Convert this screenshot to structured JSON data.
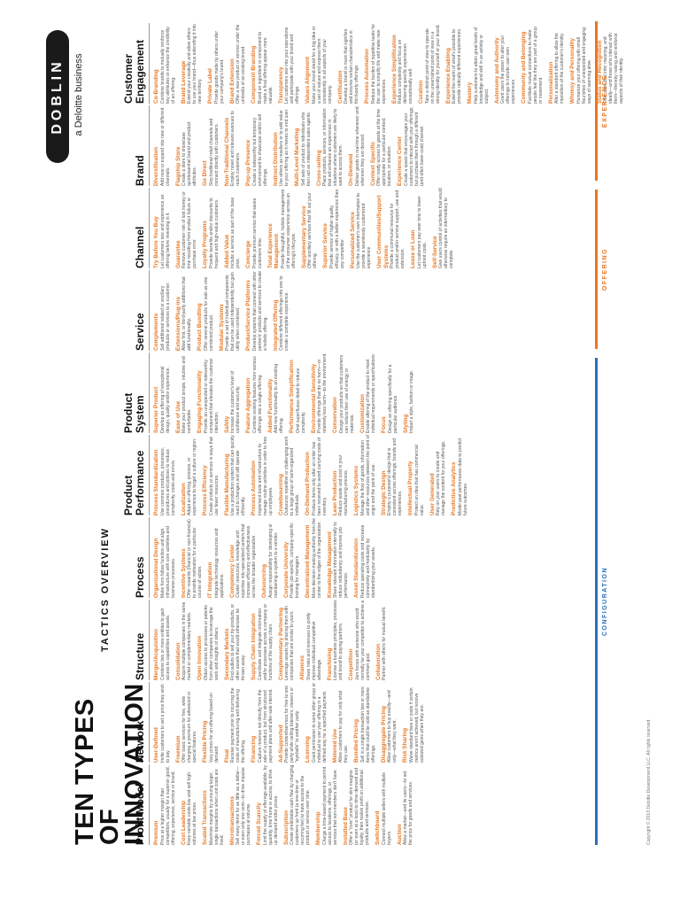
{
  "header": {
    "title_line1": "TEN TYPES OF",
    "title_line2": "INNOVATION",
    "subtitle": "TACTICS OVERVIEW",
    "brand": "DOBLIN",
    "brand_sub": "a Deloitte business"
  },
  "categories": [
    {
      "label": "CONFIGURATION",
      "color": "#2e6fb5"
    },
    {
      "label": "OFFERING",
      "color": "#e87722"
    },
    {
      "label": "EXPERIENCE",
      "color": "#e87722"
    }
  ],
  "copyright": "Copyright © 2013 Deloitte Development LLC. All rights reserved.",
  "columns": [
    {
      "name": "Profit Model",
      "tactics": [
        {
          "name": "Premium",
          "desc": "Price at a higher margin than competitors, usually for a superior good, offering, experience, service or brand."
        },
        {
          "name": "Cost Leadership",
          "desc": "Keep variable costs low and sell high volumes at low prices."
        },
        {
          "name": "Scaled Transactions",
          "desc": "Maximize margins by pursuing larger, single transactions when unit costs are fixed."
        },
        {
          "name": "Microtransactions",
          "desc": "Sell many items for as little as a dollar—or even only one cent—to drive impulse purchases at volume."
        },
        {
          "name": "Forced Scarcity",
          "desc": "Limit the supply of offerings available, by quantity, time frame or access, to drive up demand and/or prices."
        },
        {
          "name": "Subscription",
          "desc": "Create predictable cash flow by charging customers up front (a one-time or recurring fee) to have access to the product or service over time."
        },
        {
          "name": "Membership",
          "desc": "Charge a time-based payment to permit access to locations, offerings, or services that non-members don't have."
        },
        {
          "name": "Installed Base",
          "desc": "Offer a \"core\" product for slim margins (or even at a loss) to drive demand and loyalty, then realize profit on additional products and services."
        },
        {
          "name": "Switchboard",
          "desc": "Connect multiple sellers with multiple buyers."
        },
        {
          "name": "Auction",
          "desc": "Allow a market—and its users—to set the price for goods and services."
        }
      ]
    },
    {
      "name": "Network",
      "tactics": [
        {
          "name": "User-Defined",
          "desc": "Invite customers to set a price they wish to pay."
        },
        {
          "name": "Freemium",
          "desc": "Offer basic services for free, while charging a premium for advanced or special features."
        },
        {
          "name": "Flexible Pricing",
          "desc": "Vary prices for an offering based on demand."
        },
        {
          "name": "Float",
          "desc": "Receive payment prior to incurring the costs of manufacturing and delivering the offering."
        },
        {
          "name": "Financing",
          "desc": "Capture revenue not directly from the sale of a product, but from structured payment plans and after-sale interest."
        },
        {
          "name": "Ad-Supported",
          "desc": "Provide content/services for free to one party while selling listeners, viewers or \"eyeballs\" to another party."
        },
        {
          "name": "Licensing",
          "desc": "Grant permission to some other group or individual to use your offering in a defined way for a specified payment."
        },
        {
          "name": "Metered Use",
          "desc": "Allow customers to pay for only what they use."
        },
        {
          "name": "Bundled Pricing",
          "desc": "Sell in a single transaction two or more items that could be sold as standalone offerings."
        },
        {
          "name": "Disaggregate Pricing",
          "desc": "Allow customers to buy exactly—and only—what they want."
        },
        {
          "name": "Risk Sharing",
          "desc": "Waive standard fees or costs if certain metrics aren't achieved, but receive outsized gains when they are."
        }
      ]
    },
    {
      "name": "Structure",
      "tactics": [
        {
          "name": "Merger/Acquisition",
          "desc": "Combine two or more entities to gain access to capabilities and assets."
        },
        {
          "name": "Consolidation",
          "desc": "Acquire multiple companies in the same market or complementary markets."
        },
        {
          "name": "Open Innovation",
          "desc": "Obtain access to processes or patents from other companies to leverage the work and insights of others."
        },
        {
          "name": "Secondary Markets",
          "desc": "Find outlets to sell your by-products, or other assets that would otherwise be thrown away."
        },
        {
          "name": "Supply Chain Integration",
          "desc": "Coordinate and integrate information and/or processes across a company or functions of the supply chain."
        },
        {
          "name": "Complementary Partnering",
          "desc": "Leverage assets by sharing them with companies that are similar to yours."
        },
        {
          "name": "Alliances",
          "desc": "Share risks and revenues to jointly improve individual competitive advantage."
        },
        {
          "name": "Franchising",
          "desc": "License a business principles, processes and brand to paying partners."
        },
        {
          "name": "Coopetition",
          "desc": "Join forces with someone who would normally be your competitor to achieve a common goal."
        },
        {
          "name": "Collaboration",
          "desc": "Partner with others for mutual benefit."
        }
      ]
    },
    {
      "name": "Process",
      "tactics": [
        {
          "name": "Organizational Design",
          "desc": "Make form follow function and align infrastructure with core activities and business processes."
        },
        {
          "name": "Incentive Systems",
          "desc": "Offer rewards (financial or non-financial) to provide motivation for a particular course of action."
        },
        {
          "name": "IT Integration",
          "desc": "Integrate technology resources and applications."
        },
        {
          "name": "Competency Center",
          "desc": "Cluster resources, knowledge and expertise into specialized centers that increase efficiency and effectiveness across the broader organization."
        },
        {
          "name": "Outsourcing",
          "desc": "Assign responsibility for developing or maintaining a system to a vendor."
        },
        {
          "name": "Corporate University",
          "desc": "Provide job-specific, company-specific training for managers."
        },
        {
          "name": "Decentralized Management",
          "desc": "Move decision-making authority from the center to the edges of the organization."
        },
        {
          "name": "Knowledge Management",
          "desc": "Share relevant information internally to reduce redundancy and improve job performance."
        },
        {
          "name": "Asset Standardization",
          "desc": "Reduce operating costs and increase connectivity and modularity by standardizing your assets."
        }
      ]
    },
    {
      "name": "Product Performance",
      "tactics": [
        {
          "name": "Process Standardization",
          "desc": "Use common products, processes, procedures and policies to reduce complexity, costs and errors."
        },
        {
          "name": "Localization",
          "desc": "Adapt an offering, process, or experience to target a culture or region."
        },
        {
          "name": "Process Efficiency",
          "desc": "Create products or services in ways that use fewer resources."
        },
        {
          "name": "Flexible Manufacturing",
          "desc": "Use a production system that can quickly react to changes and still operate efficiently."
        },
        {
          "name": "Process Automation",
          "desc": "Implement tools and infrastructure to manage routine activities in order to free up employees."
        },
        {
          "name": "Crowdsourcing",
          "desc": "Outsource repetitive or challenging work to a large group of semi-organized individuals."
        },
        {
          "name": "On-Demand Production",
          "desc": "Produce items only after an order has been received to avoid carrying costs of inventory."
        },
        {
          "name": "Lean Production",
          "desc": "Reduce waste and cost in your manufacturing process."
        },
        {
          "name": "Logistics Systems",
          "desc": "Manage the flow of goods, information and other resources between the point of origin and the point of use."
        },
        {
          "name": "Strategic Design",
          "desc": "Employ a purposeful design that is consistent across offerings, brands and experiences."
        },
        {
          "name": "Intellectual Property",
          "desc": "Protect an idea that has commercial value."
        },
        {
          "name": "User Generated",
          "desc": "Rely on your users to create and manage the content for your offerings."
        },
        {
          "name": "Predictive Analytics",
          "desc": "Model past performance data to predict future outcomes."
        }
      ]
    },
    {
      "name": "Product System",
      "tactics": [
        {
          "name": "Superior Product",
          "desc": "Develop an offering of exceptional design, quality and/or experience."
        },
        {
          "name": "Ease of Use",
          "desc": "Make your product simple, intuitive and comfortable."
        },
        {
          "name": "Engaging Functionality",
          "desc": "Provide an unexpected or noteworthy component that elevates the customer interaction."
        },
        {
          "name": "Safety",
          "desc": "Increase the customer's level of confidence and security."
        },
        {
          "name": "Feature Aggregation",
          "desc": "Combine existing features from various offerings into a single offering."
        },
        {
          "name": "Added Functionality",
          "desc": "Add new functionality to an existing offering."
        },
        {
          "name": "Performance Simplification",
          "desc": "Omit superfluous detail to reduce complexity."
        },
        {
          "name": "Environmental Sensitivity",
          "desc": "Provide offerings that do no harm—or relatively less harm—to the environment."
        },
        {
          "name": "Conservation",
          "desc": "Design your products so that customers can reduce their use of energy or materials."
        },
        {
          "name": "Customization",
          "desc": "Enable altering of the product to meet individual requirements or specifications."
        },
        {
          "name": "Focus",
          "desc": "Design an offering specifically for a particular audience."
        },
        {
          "name": "Styling",
          "desc": "Impart a style, fashion or image."
        }
      ]
    },
    {
      "name": "Service",
      "tactics": [
        {
          "name": "Complements",
          "desc": "Sell additional related or ancillary products or services to a customer."
        },
        {
          "name": "Extensions/Plug-ins",
          "desc": "Allow first, or third-party additions that add functionality."
        },
        {
          "name": "Product Bundling",
          "desc": "Offer several products for sale as one combined product."
        },
        {
          "name": "Modular Systems",
          "desc": "Provide a set of individual components that can be used independently but gain utility when combined."
        },
        {
          "name": "Product/Service Platforms",
          "desc": "Develop systems that connect with other partners' products and services to create a holistic offering."
        },
        {
          "name": "Integrated Offering",
          "desc": "Combine different offerings into one to create a complete experience."
        }
      ]
    },
    {
      "name": "Channel",
      "tactics": [
        {
          "name": "Try Before You Buy",
          "desc": "Let customers see and experience an offering before investing in it."
        },
        {
          "name": "Guarantee",
          "desc": "Remove customer risk of lost money or time resulting from product failure or purchase error."
        },
        {
          "name": "Loyalty Programs",
          "desc": "Provide benefits and/or discounts to frequent and high-value customers."
        },
        {
          "name": "Added Value",
          "desc": "Include a service as part of the base price."
        },
        {
          "name": "Concierge",
          "desc": "Provide premium service that saves customers time."
        },
        {
          "name": "Total Experience Management",
          "desc": "Provide thoughtful, holistic management of the consumer experience across an offering's lifecycle."
        },
        {
          "name": "Supplementary Service",
          "desc": "Offer ancillary services that fill out your offering."
        },
        {
          "name": "Superior Service",
          "desc": "Provide service of higher quality, efficacy, or with a better experience than any competitor."
        },
        {
          "name": "Personalized Service",
          "desc": "Use the customer's own information to provide a seamlessly customized experience."
        },
        {
          "name": "User Communities/Support Systems",
          "desc": "Provide a communal resource for product and/or service support, use and extension."
        },
        {
          "name": "Lease or Loan",
          "desc": "Let customers pay over time to lower upfront costs."
        },
        {
          "name": "Self-Service",
          "desc": "Give users control of activities that would otherwise require an intermediary to complete."
        }
      ]
    },
    {
      "name": "Brand",
      "tactics": [
        {
          "name": "Diversification",
          "desc": "Add new or expand into new or different channels."
        },
        {
          "name": "Flagship Store",
          "desc": "Create a store to showcase quintessential brand and product attributes."
        },
        {
          "name": "Go Direct",
          "desc": "Skip traditional retail channels and connect directly with customers."
        },
        {
          "name": "Non-Traditional Channels",
          "desc": "Employ novel and relevant avenues to reach customers."
        },
        {
          "name": "Pop-up Presence",
          "desc": "Create a noteworthy but temporary environment to showcase and/or sell offerings."
        },
        {
          "name": "Indirect Distribution",
          "desc": "Use others as resellers or to add value to your offering as it moves to end user."
        },
        {
          "name": "Multi-Level Marketing",
          "desc": "Sell sets of product to individuals who then act as independent sales agents."
        },
        {
          "name": "Cross-selling",
          "desc": "Place products, services, or information that will enhance an experience in situations where customers are likely to want to access them."
        },
        {
          "name": "On-Demand",
          "desc": "Deliver goods in real-time whenever and wherever they are desired."
        },
        {
          "name": "Context Specific",
          "desc": "Offer ready access to goods at the time appropriate for a particular context, location, or situation."
        },
        {
          "name": "Experience Center",
          "desc": "Create a space that encourages your customers to interact with your offerings, but purchase them through a different (and often lower-cost) channel."
        }
      ]
    },
    {
      "name": "Customer Engagement",
      "tactics": [
        {
          "name": "Co-Branding",
          "desc": "Combine brands to mutually reinforce key attributes or enhance the credibility of an offering."
        },
        {
          "name": "Brand Leverage",
          "desc": "Extend your creativity and allow others to use your brand—thus extending it into new territory."
        },
        {
          "name": "Private Label",
          "desc": "Provide goods made by others under your company's brand."
        },
        {
          "name": "Brand Extension",
          "desc": "Offer a new product or service under the umbrella of an existing brand."
        },
        {
          "name": "Component Branding",
          "desc": "Brand an ingredient or component to make a final offering appear more valuable."
        },
        {
          "name": "Transparency",
          "desc": "Let customers see into your operations and participate with your brand and offerings."
        },
        {
          "name": "Values Alignment",
          "desc": "Make your brand stand for a big idea or a set of values and express them consistently in all aspects of your company."
        },
        {
          "name": "Certification",
          "desc": "Develop a brand or mark that signifies and ensures certain characteristics in third-party offerings."
        },
        {
          "name": "Process Automation",
          "desc": "Reduce the burden of repetitive tasks for the user to simplify life and make new experiences."
        },
        {
          "name": "Experience Simplification",
          "desc": "Reduce complexity and focus on delivering specific experiences exceptionally well."
        },
        {
          "name": "Curation",
          "desc": "Take a distinct point of view to operate on the unvarnished point of view in a strong identity for yourself or your brand."
        },
        {
          "name": "Experience Enabling",
          "desc": "Extend the realm of what's possible to provide radically different experiences."
        },
        {
          "name": "Mastery",
          "desc": "Help customers to attain great levels of knowledge and skill in an activity or subject."
        },
        {
          "name": "Autonomy and Authority",
          "desc": "Grant users the power to alter your offerings to include user-own experiences."
        },
        {
          "name": "Community and Belonging",
          "desc": "Facilitate mutual connections to make people feel like they are part of a group or movement."
        },
        {
          "name": "Personalization",
          "desc": "Alter a standard offering to allow the imposition of the customer's identity."
        },
        {
          "name": "Whimsy and Personality",
          "desc": "Humanize your offering with small flourishes of unexpected and engaging ways of seeming alive."
        },
        {
          "name": "Status and Recognition",
          "desc": "Offer cues that infer meaning, and ideally—and those who interact with them—thereby raising and reinforce aspects of their identity."
        }
      ]
    }
  ]
}
